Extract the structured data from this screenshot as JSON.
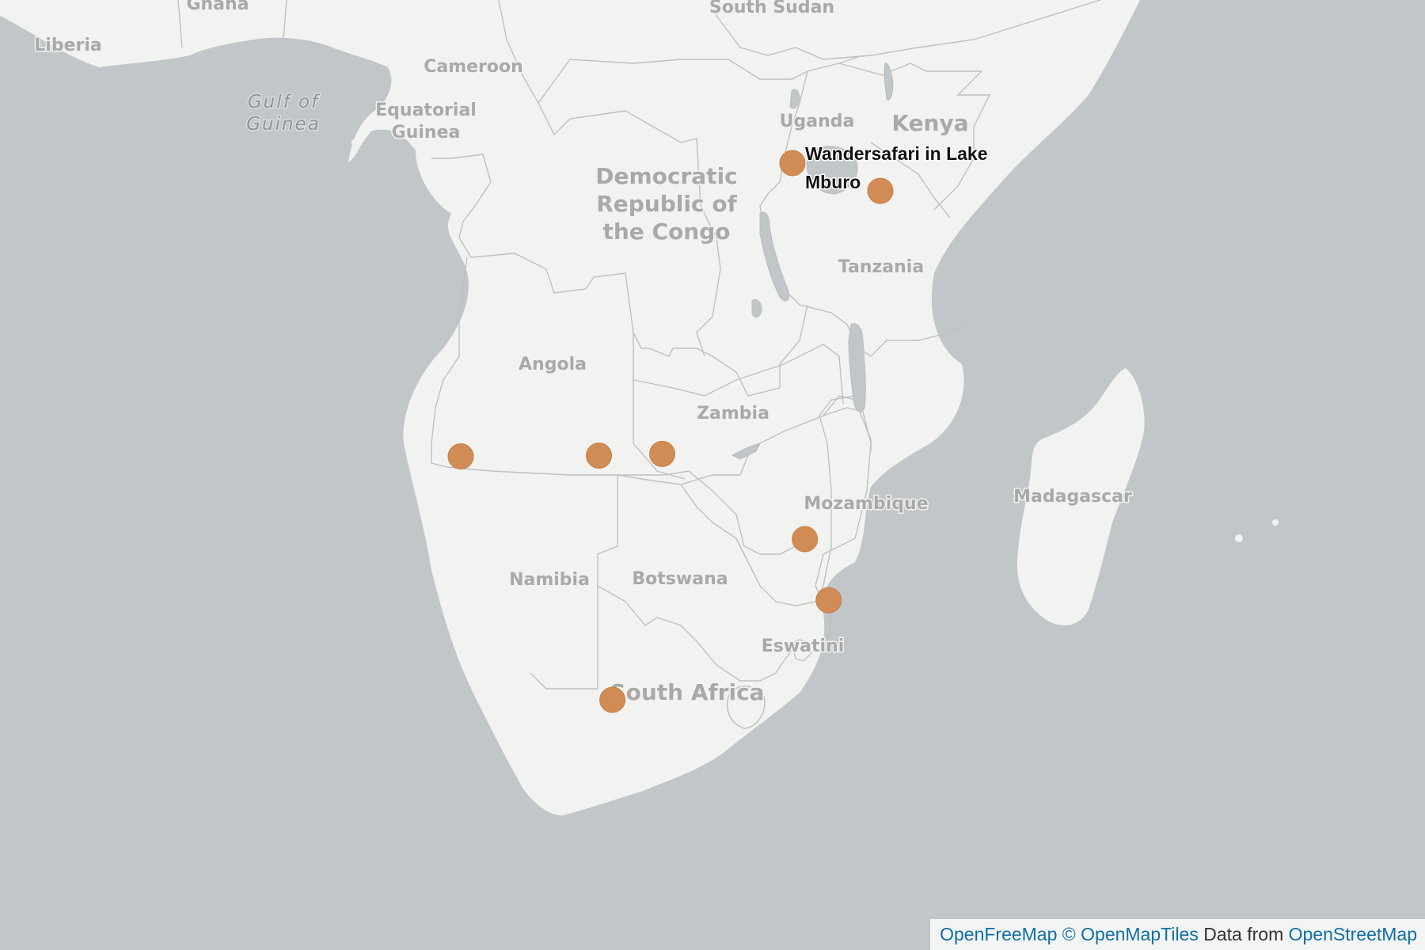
{
  "map": {
    "countries": [
      {
        "id": "ghana",
        "name": "Ghana"
      },
      {
        "id": "liberia",
        "name": "Liberia"
      },
      {
        "id": "south-sudan",
        "name": "South Sudan"
      },
      {
        "id": "cameroon",
        "name": "Cameroon"
      },
      {
        "id": "equatorial-guinea",
        "name": "Equatorial Guinea",
        "lines": [
          "Equatorial",
          "Guinea"
        ]
      },
      {
        "id": "uganda",
        "name": "Uganda"
      },
      {
        "id": "kenya",
        "name": "Kenya"
      },
      {
        "id": "drc",
        "name": "Democratic Republic of the Congo",
        "lines": [
          "Democratic",
          "Republic of",
          "the Congo"
        ]
      },
      {
        "id": "tanzania",
        "name": "Tanzania"
      },
      {
        "id": "angola",
        "name": "Angola"
      },
      {
        "id": "zambia",
        "name": "Zambia"
      },
      {
        "id": "mozambique",
        "name": "Mozambique"
      },
      {
        "id": "madagascar",
        "name": "Madagascar"
      },
      {
        "id": "namibia",
        "name": "Namibia"
      },
      {
        "id": "botswana",
        "name": "Botswana"
      },
      {
        "id": "eswatini",
        "name": "Eswatini"
      },
      {
        "id": "south-africa",
        "name": "South Africa"
      }
    ],
    "water": [
      {
        "id": "gulf-of-guinea",
        "name": "Gulf of Guinea",
        "lines": [
          "Gulf of",
          "Guinea"
        ]
      }
    ],
    "markers": [
      {
        "id": "lake-mburo",
        "label": "Wandersafari in Lake Mburo",
        "label_lines": [
          "Wandersafari in Lake",
          "Mburo"
        ],
        "lat": -0.6,
        "lon": 30.95
      },
      {
        "id": "serengeti",
        "label": "",
        "lat": -2.33,
        "lon": 34.83
      },
      {
        "id": "etosha",
        "label": "",
        "lat": -18.85,
        "lon": 16.3
      },
      {
        "id": "okavango",
        "label": "",
        "lat": -18.8,
        "lon": 22.4
      },
      {
        "id": "chobe",
        "label": "",
        "lat": -18.7,
        "lon": 25.2
      },
      {
        "id": "kruger",
        "label": "",
        "lat": -24.0,
        "lon": 31.5
      },
      {
        "id": "isimangaliso",
        "label": "",
        "lat": -27.8,
        "lon": 32.55
      },
      {
        "id": "garden-route",
        "label": "",
        "lat": -34.0,
        "lon": 23.0
      }
    ],
    "colors": {
      "water": "#c1c6c9",
      "land": "#f2f2f0",
      "border": "#bfc0c0",
      "marker": "#d08c54"
    }
  },
  "attribution": {
    "openfreemap": "OpenFreeMap",
    "openmaptiles": "© OpenMapTiles",
    "data_from": "Data from",
    "openstreetmap": "OpenStreetMap"
  }
}
